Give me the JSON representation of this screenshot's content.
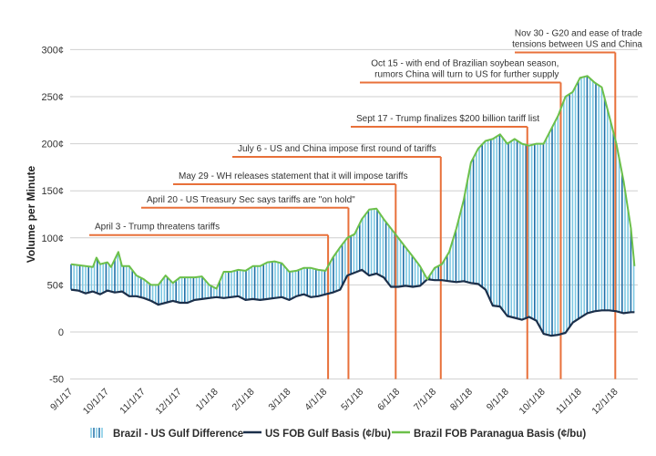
{
  "chart_data": {
    "type": "line",
    "title": "",
    "xlabel": "",
    "ylabel": "Volume per Minute",
    "ylim": [
      -50,
      300
    ],
    "grid": true,
    "y_ticks": [
      {
        "value": 300,
        "label": "300¢"
      },
      {
        "value": 250,
        "label": "250¢"
      },
      {
        "value": 200,
        "label": "200¢"
      },
      {
        "value": 150,
        "label": "150¢"
      },
      {
        "value": 100,
        "label": "100¢"
      },
      {
        "value": 50,
        "label": "50¢"
      },
      {
        "value": 0,
        "label": "0"
      },
      {
        "value": -50,
        "label": "-50"
      }
    ],
    "x_ticks": [
      "9/1/17",
      "10/1/17",
      "11/1/17",
      "12/1/17",
      "1/1/18",
      "2/1/18",
      "3/1/18",
      "4/1/18",
      "5/1/18",
      "6/1/18",
      "7/1/18",
      "8/1/18",
      "9/1/18",
      "10/1/18",
      "11/1/18",
      "12/1/18"
    ],
    "x_range_months": [
      0,
      15.5
    ],
    "legend_position": "bottom",
    "series": [
      {
        "name": "Brazil - US Gulf Difference",
        "style": "vertical-bars",
        "color": "#7ec8e3",
        "color_alt": "#1f6fa8"
      },
      {
        "name": "US FOB Gulf Basis (¢/bu)",
        "style": "line",
        "color": "#1b2f4a",
        "points": [
          [
            0,
            45
          ],
          [
            0.2,
            44
          ],
          [
            0.4,
            41
          ],
          [
            0.6,
            43
          ],
          [
            0.8,
            40
          ],
          [
            1.0,
            44
          ],
          [
            1.2,
            42
          ],
          [
            1.4,
            43
          ],
          [
            1.6,
            38
          ],
          [
            1.8,
            38
          ],
          [
            2.0,
            36
          ],
          [
            2.2,
            33
          ],
          [
            2.4,
            29
          ],
          [
            2.6,
            31
          ],
          [
            2.8,
            33
          ],
          [
            3.0,
            31
          ],
          [
            3.2,
            31
          ],
          [
            3.4,
            34
          ],
          [
            3.6,
            35
          ],
          [
            3.8,
            36
          ],
          [
            4.0,
            37
          ],
          [
            4.2,
            36
          ],
          [
            4.4,
            37
          ],
          [
            4.6,
            38
          ],
          [
            4.8,
            34
          ],
          [
            5.0,
            35
          ],
          [
            5.2,
            34
          ],
          [
            5.4,
            35
          ],
          [
            5.6,
            36
          ],
          [
            5.8,
            37
          ],
          [
            6.0,
            34
          ],
          [
            6.2,
            38
          ],
          [
            6.4,
            40
          ],
          [
            6.6,
            37
          ],
          [
            6.8,
            38
          ],
          [
            7.0,
            40
          ],
          [
            7.2,
            42
          ],
          [
            7.4,
            45
          ],
          [
            7.6,
            60
          ],
          [
            7.8,
            63
          ],
          [
            8.0,
            66
          ],
          [
            8.2,
            60
          ],
          [
            8.4,
            62
          ],
          [
            8.6,
            58
          ],
          [
            8.8,
            48
          ],
          [
            9.0,
            48
          ],
          [
            9.2,
            49
          ],
          [
            9.4,
            48
          ],
          [
            9.6,
            49
          ],
          [
            9.8,
            56
          ],
          [
            10.0,
            55
          ],
          [
            10.2,
            55
          ],
          [
            10.4,
            54
          ],
          [
            10.6,
            53
          ],
          [
            10.8,
            54
          ],
          [
            11.0,
            52
          ],
          [
            11.2,
            51
          ],
          [
            11.4,
            45
          ],
          [
            11.6,
            28
          ],
          [
            11.8,
            27
          ],
          [
            12.0,
            17
          ],
          [
            12.2,
            15
          ],
          [
            12.4,
            13
          ],
          [
            12.6,
            16
          ],
          [
            12.8,
            12
          ],
          [
            13.0,
            -2
          ],
          [
            13.2,
            -4
          ],
          [
            13.4,
            -3
          ],
          [
            13.6,
            -1
          ],
          [
            13.8,
            10
          ],
          [
            14.0,
            15
          ],
          [
            14.2,
            20
          ],
          [
            14.4,
            22
          ],
          [
            14.6,
            23
          ],
          [
            14.8,
            23
          ],
          [
            15.0,
            22
          ],
          [
            15.2,
            20
          ],
          [
            15.4,
            21
          ],
          [
            15.5,
            21
          ]
        ]
      },
      {
        "name": "Brazil FOB Paranagua Basis (¢/bu)",
        "style": "line",
        "color": "#6cc04a",
        "points": [
          [
            0,
            72
          ],
          [
            0.2,
            71
          ],
          [
            0.4,
            70
          ],
          [
            0.6,
            69
          ],
          [
            0.7,
            79
          ],
          [
            0.8,
            72
          ],
          [
            1.0,
            74
          ],
          [
            1.1,
            69
          ],
          [
            1.3,
            85
          ],
          [
            1.4,
            70
          ],
          [
            1.6,
            70
          ],
          [
            1.8,
            60
          ],
          [
            2.0,
            56
          ],
          [
            2.2,
            50
          ],
          [
            2.4,
            50
          ],
          [
            2.6,
            60
          ],
          [
            2.8,
            52
          ],
          [
            3.0,
            58
          ],
          [
            3.2,
            58
          ],
          [
            3.4,
            58
          ],
          [
            3.6,
            59
          ],
          [
            3.8,
            50
          ],
          [
            4.0,
            46
          ],
          [
            4.2,
            64
          ],
          [
            4.4,
            64
          ],
          [
            4.6,
            66
          ],
          [
            4.8,
            65
          ],
          [
            5.0,
            70
          ],
          [
            5.2,
            70
          ],
          [
            5.4,
            74
          ],
          [
            5.6,
            75
          ],
          [
            5.8,
            73
          ],
          [
            6.0,
            64
          ],
          [
            6.2,
            65
          ],
          [
            6.4,
            68
          ],
          [
            6.6,
            68
          ],
          [
            6.8,
            66
          ],
          [
            7.0,
            65
          ],
          [
            7.2,
            79
          ],
          [
            7.4,
            90
          ],
          [
            7.6,
            100
          ],
          [
            7.8,
            104
          ],
          [
            8.0,
            120
          ],
          [
            8.2,
            130
          ],
          [
            8.4,
            131
          ],
          [
            8.6,
            120
          ],
          [
            8.8,
            110
          ],
          [
            9.0,
            100
          ],
          [
            9.2,
            90
          ],
          [
            9.4,
            80
          ],
          [
            9.6,
            70
          ],
          [
            9.8,
            56
          ],
          [
            10.0,
            68
          ],
          [
            10.2,
            72
          ],
          [
            10.4,
            85
          ],
          [
            10.6,
            110
          ],
          [
            10.8,
            140
          ],
          [
            11.0,
            180
          ],
          [
            11.2,
            195
          ],
          [
            11.4,
            203
          ],
          [
            11.6,
            205
          ],
          [
            11.8,
            210
          ],
          [
            12.0,
            200
          ],
          [
            12.2,
            205
          ],
          [
            12.4,
            200
          ],
          [
            12.6,
            198
          ],
          [
            12.8,
            200
          ],
          [
            13.0,
            200
          ],
          [
            13.2,
            215
          ],
          [
            13.4,
            230
          ],
          [
            13.6,
            250
          ],
          [
            13.8,
            255
          ],
          [
            14.0,
            270
          ],
          [
            14.2,
            272
          ],
          [
            14.4,
            265
          ],
          [
            14.6,
            260
          ],
          [
            14.8,
            230
          ],
          [
            15.0,
            200
          ],
          [
            15.2,
            160
          ],
          [
            15.4,
            110
          ],
          [
            15.5,
            70
          ]
        ]
      }
    ],
    "annotations": [
      {
        "date_month": 7.07,
        "lines": [
          "April 3 - Trump threatens tariffs"
        ],
        "level": 103
      },
      {
        "date_month": 7.63,
        "lines": [
          "April 20 - US Treasury Sec says tariffs are \"on hold\""
        ],
        "level": 132
      },
      {
        "date_month": 8.93,
        "lines": [
          "May 29 -  WH releases statement that it will impose tariffs"
        ],
        "level": 157
      },
      {
        "date_month": 10.17,
        "lines": [
          "July 6 -  US and China impose first round of tariffs"
        ],
        "level": 186
      },
      {
        "date_month": 12.55,
        "lines": [
          "Sept 17 -  Trump finalizes $200 billion tariff list"
        ],
        "level": 218
      },
      {
        "date_month": 13.47,
        "lines": [
          "Oct 15 -  with end of Brazilian soybean season,",
          "rumors China will turn to US for further supply"
        ],
        "level": 265
      },
      {
        "date_month": 14.97,
        "lines": [
          "Nov 30 -  G20 and ease of trade",
          "tensions between US and China"
        ],
        "level": 297
      }
    ],
    "annotation_color": "#e8703a"
  }
}
